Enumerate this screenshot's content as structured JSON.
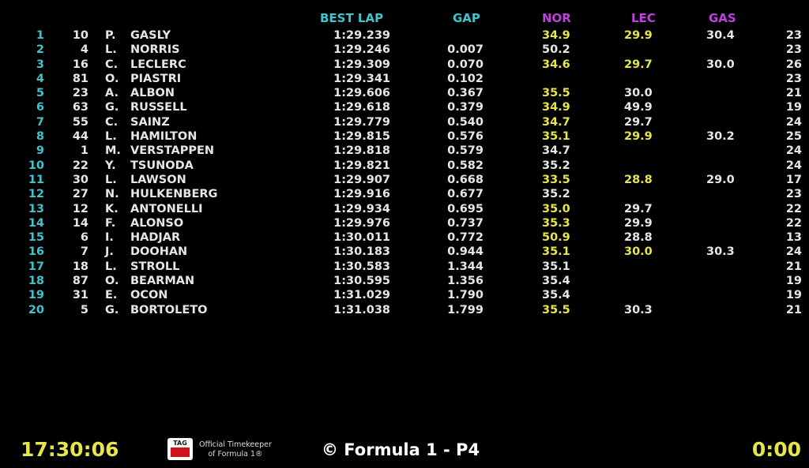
{
  "header": {
    "best_lap": "BEST LAP",
    "gap": "GAP",
    "s1": "NOR",
    "s2": "LEC",
    "s3": "GAS"
  },
  "rows": [
    {
      "pos": "1",
      "num": "10",
      "init": "P.",
      "name": "GASLY",
      "best": "1:29.239",
      "gap": "",
      "s1": "34.9",
      "s2": "29.9",
      "s3": "30.4",
      "laps": "23",
      "s1y": true,
      "s2y": true
    },
    {
      "pos": "2",
      "num": "4",
      "init": "L.",
      "name": "NORRIS",
      "best": "1:29.246",
      "gap": "0.007",
      "s1": "50.2",
      "s2": "",
      "s3": "",
      "laps": "23",
      "s1y": false,
      "s2y": false
    },
    {
      "pos": "3",
      "num": "16",
      "init": "C.",
      "name": "LECLERC",
      "best": "1:29.309",
      "gap": "0.070",
      "s1": "34.6",
      "s2": "29.7",
      "s3": "30.0",
      "laps": "26",
      "s1y": true,
      "s2y": true
    },
    {
      "pos": "4",
      "num": "81",
      "init": "O.",
      "name": "PIASTRI",
      "best": "1:29.341",
      "gap": "0.102",
      "s1": "",
      "s2": "",
      "s3": "",
      "laps": "23",
      "s1y": false,
      "s2y": false
    },
    {
      "pos": "5",
      "num": "23",
      "init": "A.",
      "name": "ALBON",
      "best": "1:29.606",
      "gap": "0.367",
      "s1": "35.5",
      "s2": "30.0",
      "s3": "",
      "laps": "21",
      "s1y": true,
      "s2y": false
    },
    {
      "pos": "6",
      "num": "63",
      "init": "G.",
      "name": "RUSSELL",
      "best": "1:29.618",
      "gap": "0.379",
      "s1": "34.9",
      "s2": "49.9",
      "s3": "",
      "laps": "19",
      "s1y": true,
      "s2y": false
    },
    {
      "pos": "7",
      "num": "55",
      "init": "C.",
      "name": "SAINZ",
      "best": "1:29.779",
      "gap": "0.540",
      "s1": "34.7",
      "s2": "29.7",
      "s3": "",
      "laps": "24",
      "s1y": true,
      "s2y": false
    },
    {
      "pos": "8",
      "num": "44",
      "init": "L.",
      "name": "HAMILTON",
      "best": "1:29.815",
      "gap": "0.576",
      "s1": "35.1",
      "s2": "29.9",
      "s3": "30.2",
      "laps": "25",
      "s1y": true,
      "s2y": true
    },
    {
      "pos": "9",
      "num": "1",
      "init": "M.",
      "name": "VERSTAPPEN",
      "best": "1:29.818",
      "gap": "0.579",
      "s1": "34.7",
      "s2": "",
      "s3": "",
      "laps": "24",
      "s1y": false,
      "s2y": false
    },
    {
      "pos": "10",
      "num": "22",
      "init": "Y.",
      "name": "TSUNODA",
      "best": "1:29.821",
      "gap": "0.582",
      "s1": "35.2",
      "s2": "",
      "s3": "",
      "laps": "24",
      "s1y": false,
      "s2y": false
    },
    {
      "pos": "11",
      "num": "30",
      "init": "L.",
      "name": "LAWSON",
      "best": "1:29.907",
      "gap": "0.668",
      "s1": "33.5",
      "s2": "28.8",
      "s3": "29.0",
      "laps": "17",
      "s1y": true,
      "s2y": true
    },
    {
      "pos": "12",
      "num": "27",
      "init": "N.",
      "name": "HULKENBERG",
      "best": "1:29.916",
      "gap": "0.677",
      "s1": "35.2",
      "s2": "",
      "s3": "",
      "laps": "23",
      "s1y": false,
      "s2y": false
    },
    {
      "pos": "13",
      "num": "12",
      "init": "K.",
      "name": "ANTONELLI",
      "best": "1:29.934",
      "gap": "0.695",
      "s1": "35.0",
      "s2": "29.7",
      "s3": "",
      "laps": "22",
      "s1y": true,
      "s2y": false
    },
    {
      "pos": "14",
      "num": "14",
      "init": "F.",
      "name": "ALONSO",
      "best": "1:29.976",
      "gap": "0.737",
      "s1": "35.3",
      "s2": "29.9",
      "s3": "",
      "laps": "22",
      "s1y": true,
      "s2y": false
    },
    {
      "pos": "15",
      "num": "6",
      "init": "I.",
      "name": "HADJAR",
      "best": "1:30.011",
      "gap": "0.772",
      "s1": "50.9",
      "s2": "28.8",
      "s3": "",
      "laps": "13",
      "s1y": true,
      "s2y": false
    },
    {
      "pos": "16",
      "num": "7",
      "init": "J.",
      "name": "DOOHAN",
      "best": "1:30.183",
      "gap": "0.944",
      "s1": "35.1",
      "s2": "30.0",
      "s3": "30.3",
      "laps": "24",
      "s1y": true,
      "s2y": true
    },
    {
      "pos": "17",
      "num": "18",
      "init": "L.",
      "name": "STROLL",
      "best": "1:30.583",
      "gap": "1.344",
      "s1": "35.1",
      "s2": "",
      "s3": "",
      "laps": "21",
      "s1y": false,
      "s2y": false
    },
    {
      "pos": "18",
      "num": "87",
      "init": "O.",
      "name": "BEARMAN",
      "best": "1:30.595",
      "gap": "1.356",
      "s1": "35.4",
      "s2": "",
      "s3": "",
      "laps": "19",
      "s1y": false,
      "s2y": false
    },
    {
      "pos": "19",
      "num": "31",
      "init": "E.",
      "name": "OCON",
      "best": "1:31.029",
      "gap": "1.790",
      "s1": "35.4",
      "s2": "",
      "s3": "",
      "laps": "19",
      "s1y": false,
      "s2y": false
    },
    {
      "pos": "20",
      "num": "5",
      "init": "G.",
      "name": "BORTOLETO",
      "best": "1:31.038",
      "gap": "1.799",
      "s1": "35.5",
      "s2": "30.3",
      "s3": "",
      "laps": "21",
      "s1y": true,
      "s2y": false
    }
  ],
  "footer": {
    "clock": "17:30:06",
    "logo_text": "TAG",
    "timekeeper_line1": "Official Timekeeper",
    "timekeeper_line2": "of Formula 1®",
    "brand": "© Formula 1 - P4",
    "remaining": "0:00"
  },
  "colors": {
    "accent_cyan": "#3fc4cc",
    "sector_header": "#c040e0",
    "yellow": "#e6e54a"
  }
}
